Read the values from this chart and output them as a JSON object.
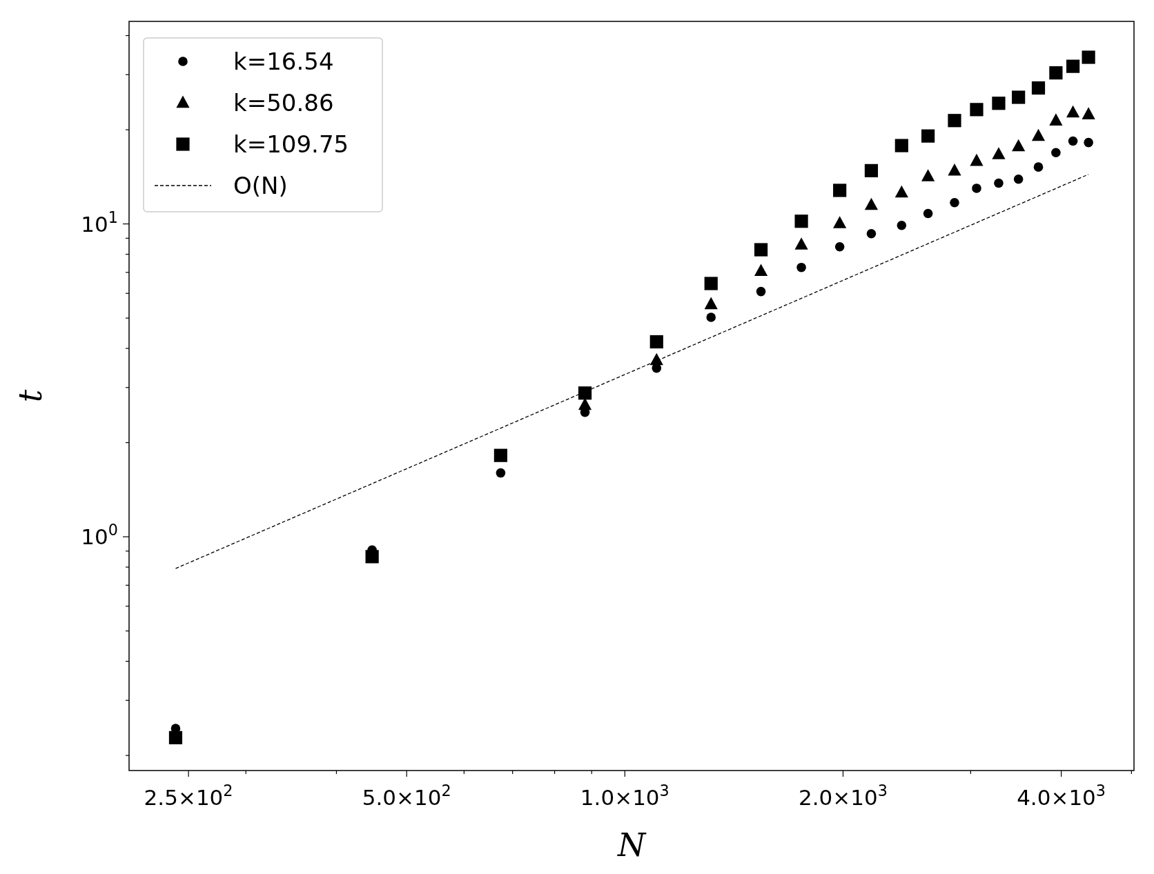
{
  "chart_data": {
    "type": "scatter",
    "xlabel": "N",
    "ylabel": "t",
    "log": "xy",
    "legend": "top left",
    "grid": false,
    "xlim": [
      207,
      5040
    ],
    "ylim": [
      0.179,
      44.4
    ],
    "xticks": [
      {
        "value": 250,
        "label": "2.5×10$^{2}$"
      },
      {
        "value": 300,
        "label": null
      },
      {
        "value": 400,
        "label": null
      },
      {
        "value": 500,
        "label": "5.0×10$^{2}$"
      },
      {
        "value": 600,
        "label": null
      },
      {
        "value": 700,
        "label": null
      },
      {
        "value": 800,
        "label": null
      },
      {
        "value": 900,
        "label": null
      },
      {
        "value": 1000,
        "label": "1.0×10$^{3}$"
      },
      {
        "value": 2000,
        "label": "2.0×10$^{3}$"
      },
      {
        "value": 3000,
        "label": null
      },
      {
        "value": 4000,
        "label": "4.0×10$^{3}$"
      },
      {
        "value": 5000,
        "label": null
      }
    ],
    "yticks": [
      {
        "value": 0.2,
        "label": null
      },
      {
        "value": 0.3,
        "label": null
      },
      {
        "value": 0.4,
        "label": null
      },
      {
        "value": 0.5,
        "label": null
      },
      {
        "value": 0.6,
        "label": null
      },
      {
        "value": 0.7,
        "label": null
      },
      {
        "value": 0.8,
        "label": null
      },
      {
        "value": 0.9,
        "label": null
      },
      {
        "value": 1,
        "label": "10$^{0}$"
      },
      {
        "value": 2,
        "label": null
      },
      {
        "value": 3,
        "label": null
      },
      {
        "value": 4,
        "label": null
      },
      {
        "value": 5,
        "label": null
      },
      {
        "value": 6,
        "label": null
      },
      {
        "value": 7,
        "label": null
      },
      {
        "value": 8,
        "label": null
      },
      {
        "value": 9,
        "label": null
      },
      {
        "value": 10,
        "label": "10$^{1}$"
      },
      {
        "value": 20,
        "label": null
      },
      {
        "value": 30,
        "label": null
      },
      {
        "value": 40,
        "label": null
      }
    ],
    "x": [
      240,
      448,
      674,
      881,
      1106,
      1315,
      1541,
      1752,
      1979,
      2188,
      2409,
      2620,
      2850,
      3057,
      3279,
      3492,
      3720,
      3933,
      4152,
      4362
    ],
    "series": [
      {
        "name": "k=16.54",
        "color": "#000000",
        "marker": "circle",
        "values": [
          0.244,
          0.907,
          1.6,
          2.5,
          3.46,
          5.03,
          6.08,
          7.26,
          8.45,
          9.31,
          9.89,
          10.8,
          11.7,
          13.0,
          13.5,
          13.9,
          15.2,
          16.9,
          18.4,
          18.2
        ]
      },
      {
        "name": "k=50.86",
        "color": "#000000",
        "marker": "triangle",
        "values": [
          null,
          null,
          null,
          2.64,
          3.67,
          5.54,
          7.07,
          8.59,
          10.05,
          11.5,
          12.6,
          14.2,
          14.8,
          15.9,
          16.7,
          17.7,
          19.1,
          21.4,
          22.7,
          22.4
        ]
      },
      {
        "name": "k=109.75",
        "color": "#000000",
        "marker": "square",
        "values": [
          0.228,
          0.864,
          1.82,
          2.88,
          4.2,
          6.45,
          8.27,
          10.2,
          12.8,
          14.8,
          17.8,
          19.1,
          21.4,
          23.2,
          24.3,
          25.4,
          27.2,
          30.4,
          31.9,
          34.1
        ]
      },
      {
        "name": "O(N)",
        "type": "line",
        "color": "#000000",
        "line_style": "dashed",
        "marker": "none",
        "x": [
          240,
          4362
        ],
        "values": [
          0.792,
          14.4
        ]
      }
    ]
  }
}
